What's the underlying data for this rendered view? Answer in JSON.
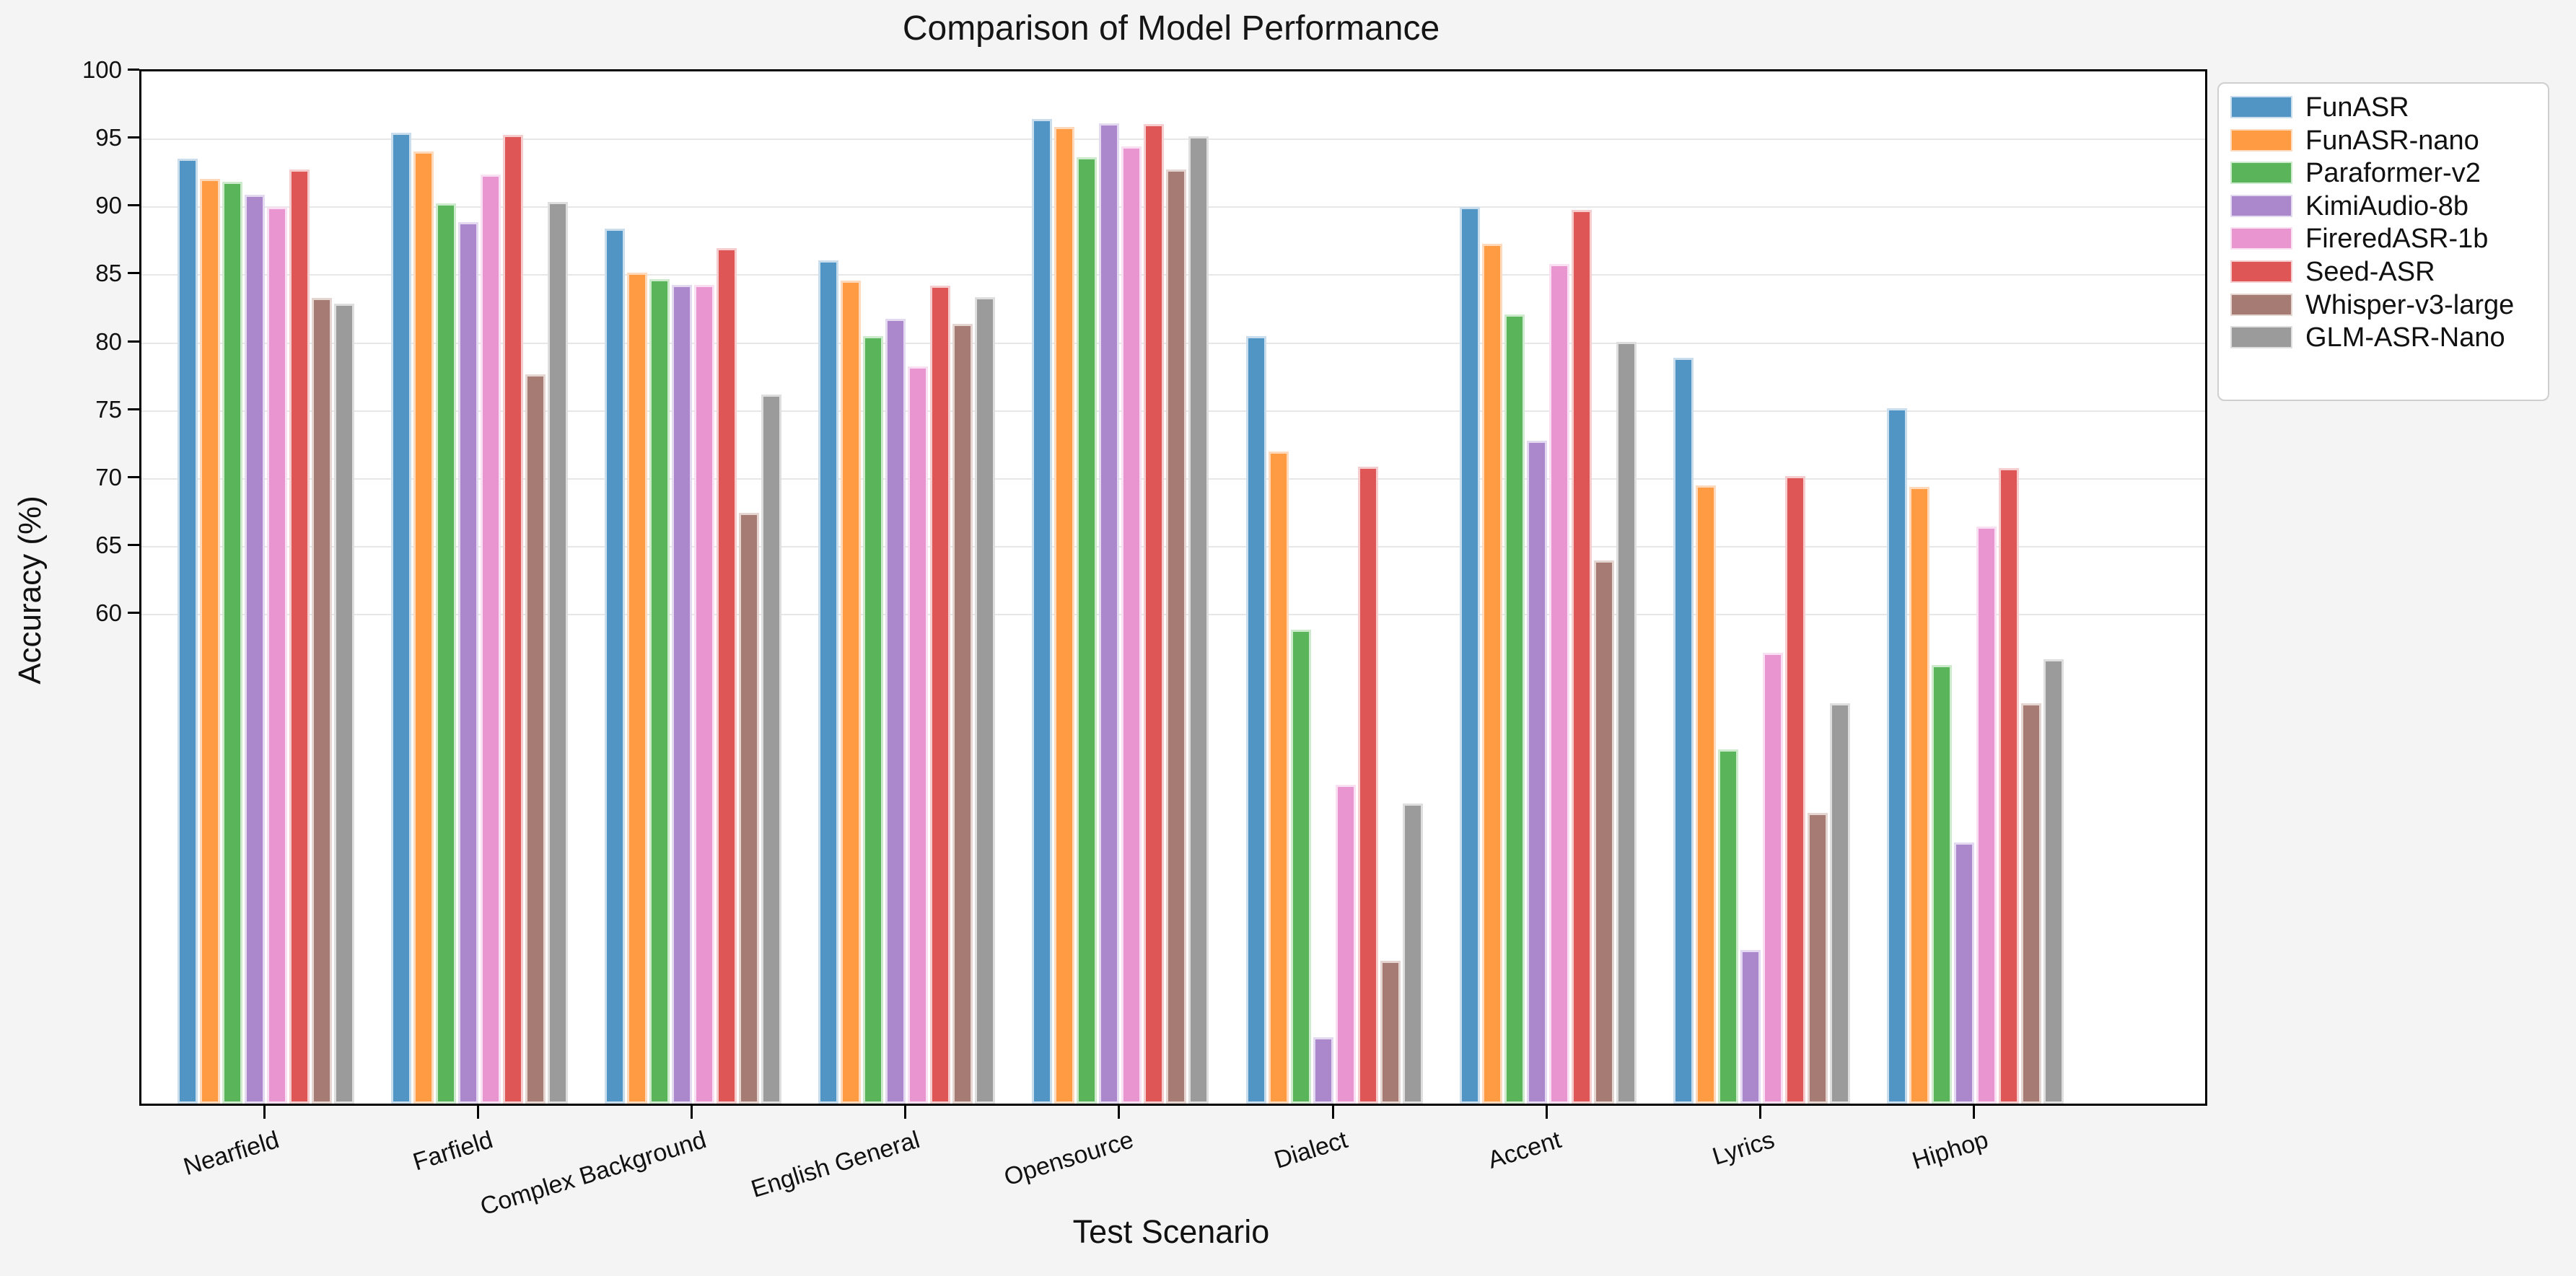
{
  "chart_data": {
    "type": "bar",
    "title": "Comparison of Model Performance",
    "xlabel": "Test Scenario",
    "ylabel": "Accuracy (%)",
    "categories": [
      "Nearfield",
      "Farfield",
      "Complex Background",
      "English General",
      "Opensource",
      "Dialect",
      "Accent",
      "Lyrics",
      "Hiphop"
    ],
    "series": [
      {
        "name": "FunASR",
        "color": "#5095c4",
        "edge": "#c9dded",
        "values": [
          93.6,
          95.5,
          88.4,
          86.1,
          96.5,
          80.5,
          90.0,
          78.9,
          75.2
        ]
      },
      {
        "name": "FunASR-nano",
        "color": "#ff9b43",
        "edge": "#ffd9bc",
        "values": [
          92.1,
          94.1,
          85.2,
          84.6,
          95.9,
          72.0,
          87.3,
          69.5,
          69.4
        ]
      },
      {
        "name": "Paraformer-v2",
        "color": "#5ab55a",
        "edge": "#cdeacd",
        "values": [
          91.9,
          90.3,
          84.7,
          80.5,
          93.7,
          58.9,
          82.1,
          50.1,
          56.3
        ]
      },
      {
        "name": "KimiAudio-8b",
        "color": "#ab88cb",
        "edge": "#e3d9f0",
        "values": [
          90.9,
          88.9,
          84.3,
          81.8,
          96.2,
          28.9,
          72.8,
          35.3,
          43.2
        ]
      },
      {
        "name": "FireredASR-1b",
        "color": "#e995cf",
        "edge": "#f8dff2",
        "values": [
          90.0,
          92.4,
          84.3,
          78.3,
          94.5,
          47.5,
          85.8,
          57.2,
          66.5
        ]
      },
      {
        "name": "Seed-ASR",
        "color": "#df5657",
        "edge": "#f5cdce",
        "values": [
          92.8,
          95.3,
          87.0,
          84.2,
          96.1,
          70.9,
          89.8,
          70.2,
          70.8
        ]
      },
      {
        "name": "Whisper-v3-large",
        "color": "#a57b73",
        "edge": "#e4d5d1",
        "values": [
          83.3,
          77.7,
          67.5,
          81.4,
          92.8,
          34.5,
          64.0,
          45.4,
          53.5
        ]
      },
      {
        "name": "GLM-ASR-Nano",
        "color": "#9b9b9b",
        "edge": "#dedede",
        "values": [
          82.9,
          90.4,
          76.2,
          83.4,
          95.2,
          46.1,
          80.1,
          53.5,
          56.7
        ]
      }
    ],
    "ylim": [
      24,
      100
    ],
    "yticks": [
      100,
      95,
      90,
      85,
      80,
      75,
      70,
      65,
      60
    ],
    "gridlines": [
      95,
      90,
      85,
      80,
      75,
      70,
      65,
      60
    ],
    "grid": "horizontal-only",
    "legend_position": "outside-right-top",
    "colors": {
      "figure_background": "#f4f4f4",
      "plot_background": "#ffffff",
      "spine": "#000000",
      "grid": "#e7e7e7",
      "text": "#111111",
      "legend_border": "#cfcfcf",
      "legend_background": "#ffffff"
    }
  }
}
